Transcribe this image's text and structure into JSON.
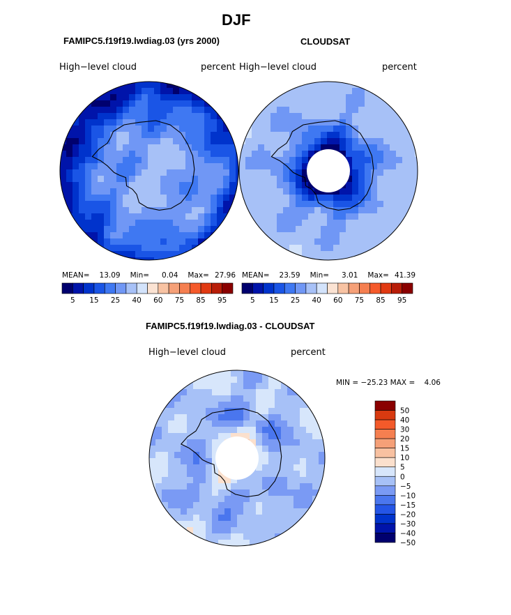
{
  "figure": {
    "title": "DJF",
    "subtitle_left": "FAMIPC5.f19f19.lwdiag.03 (yrs 2000)",
    "subtitle_right": "CLOUDSAT",
    "diff_title": "FAMIPC5.f19f19.lwdiag.03 - CLOUDSAT"
  },
  "colors": {
    "abs_scale": [
      "#00006e",
      "#0014aa",
      "#0033cc",
      "#1a55e6",
      "#3f78f2",
      "#7097f5",
      "#a7c1f7",
      "#d3e3fb",
      "#fbe3d3",
      "#f8c3a3",
      "#f5a078",
      "#f57f50",
      "#f55a2b",
      "#e13a12",
      "#b81d08",
      "#8a0000"
    ],
    "diff_scale": [
      "#00006e",
      "#0014aa",
      "#0033cc",
      "#2455e6",
      "#4a76ee",
      "#7a9af4",
      "#a7c1f7",
      "#d7e6fb",
      "#fbe0cd",
      "#f8c1a1",
      "#f5a078",
      "#f57f50",
      "#f35a2a",
      "#d83a10",
      "#8a0000"
    ]
  },
  "chart_data": [
    {
      "type": "heatmap",
      "projection": "south-polar-stereographic",
      "label_left": "High−level cloud",
      "label_right": "percent",
      "stats": {
        "mean_label": "MEAN=",
        "mean": "13.09",
        "min_label": "Min=",
        "min": "0.04",
        "max_label": "Max=",
        "max": "27.96"
      },
      "colorbar_ticks": [
        "5",
        "15",
        "25",
        "40",
        "60",
        "75",
        "85",
        "95"
      ],
      "rings_percent": [
        [
          0,
          33
        ],
        [
          0.58,
          26
        ],
        [
          0.78,
          20
        ],
        [
          0.9,
          14
        ],
        [
          1.0,
          8
        ]
      ]
    },
    {
      "type": "heatmap",
      "projection": "south-polar-stereographic",
      "label_left": "High−level cloud",
      "label_right": "percent",
      "stats": {
        "mean_label": "MEAN=",
        "mean": "23.59",
        "min_label": "Min=",
        "min": "3.01",
        "max_label": "Max=",
        "max": "41.39"
      },
      "colorbar_ticks": [
        "5",
        "15",
        "25",
        "40",
        "60",
        "75",
        "85",
        "95"
      ],
      "rings_percent": [
        [
          0.24,
          0
        ],
        [
          0.3,
          12
        ],
        [
          0.44,
          22
        ],
        [
          0.62,
          30
        ],
        [
          1.0,
          36
        ]
      ]
    },
    {
      "type": "heatmap",
      "projection": "south-polar-stereographic",
      "label_left": "High−level cloud",
      "label_right": "percent",
      "minmax_text": "MIN = −25.23 MAX =    4.06",
      "colorbar_levels": [
        "50",
        "40",
        "30",
        "20",
        "15",
        "10",
        "5",
        "0",
        "−5",
        "−10",
        "−15",
        "−20",
        "−30",
        "−40",
        "−50"
      ],
      "rings_percent": [
        [
          0.25,
          0
        ],
        [
          0.45,
          -12
        ],
        [
          0.75,
          -8
        ],
        [
          1.0,
          -6
        ]
      ]
    }
  ]
}
